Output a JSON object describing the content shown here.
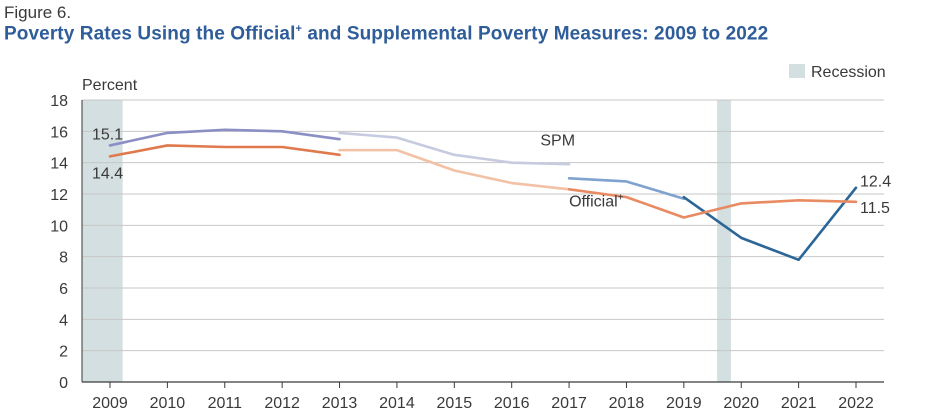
{
  "figure_label": "Figure 6.",
  "title_part1": "Poverty Rates Using the Official",
  "title_sup": "+",
  "title_part2": " and Supplemental Poverty Measures: 2009 to 2022",
  "chart_data": {
    "type": "line",
    "ylabel": "Percent",
    "ylim": [
      0,
      18
    ],
    "yticks": [
      0,
      2,
      4,
      6,
      8,
      10,
      12,
      14,
      16,
      18
    ],
    "categories": [
      "2009",
      "2010",
      "2011",
      "2012",
      "2013",
      "2014",
      "2015",
      "2016",
      "2017",
      "2018",
      "2019",
      "2020",
      "2021",
      "2022"
    ],
    "grid": true,
    "legend": {
      "label": "Recession",
      "position": "top-right",
      "color": "#d3dfe0"
    },
    "recessions": [
      {
        "from": 2009,
        "to": 2009.22
      },
      {
        "from": 2019.58,
        "to": 2019.82
      }
    ],
    "series": [
      {
        "name": "SPM",
        "segments": [
          {
            "x": [
              2009,
              2010,
              2011,
              2012,
              2013
            ],
            "y": [
              15.1,
              15.9,
              16.1,
              16.0,
              15.5
            ],
            "color": "#8b8fc4"
          },
          {
            "x": [
              2013,
              2014,
              2015,
              2016,
              2017
            ],
            "y": [
              15.9,
              15.6,
              14.5,
              14.0,
              13.9
            ],
            "color": "#c6cbdf"
          },
          {
            "x": [
              2017,
              2018,
              2019
            ],
            "y": [
              13.0,
              12.8,
              11.7
            ],
            "color": "#7fa2cf"
          },
          {
            "x": [
              2019,
              2020,
              2021,
              2022
            ],
            "y": [
              11.8,
              9.2,
              7.8,
              12.4
            ],
            "color": "#2b6697"
          }
        ]
      },
      {
        "name": "Official+",
        "segments": [
          {
            "x": [
              2009,
              2010,
              2011,
              2012,
              2013
            ],
            "y": [
              14.4,
              15.1,
              15.0,
              15.0,
              14.5
            ],
            "color": "#e0794c"
          },
          {
            "x": [
              2013,
              2014,
              2015,
              2016,
              2017
            ],
            "y": [
              14.8,
              14.8,
              13.5,
              12.7,
              12.3
            ],
            "color": "#f3c1a5"
          },
          {
            "x": [
              2017,
              2018,
              2019,
              2020,
              2021,
              2022
            ],
            "y": [
              12.3,
              11.8,
              10.5,
              11.4,
              11.6,
              11.5
            ],
            "color": "#e98b62"
          }
        ]
      }
    ],
    "annotations": [
      {
        "text": "15.1",
        "x": 2009,
        "y": 15.1
      },
      {
        "text": "14.4",
        "x": 2009,
        "y": 14.4
      },
      {
        "text": "12.4",
        "x": 2022,
        "y": 12.4
      },
      {
        "text": "11.5",
        "x": 2022,
        "y": 11.5
      },
      {
        "text": "SPM",
        "x": 2016.5,
        "y": 15.1
      },
      {
        "text": "Official",
        "sup": "+",
        "x": 2017.0,
        "y": 11.2
      }
    ]
  }
}
